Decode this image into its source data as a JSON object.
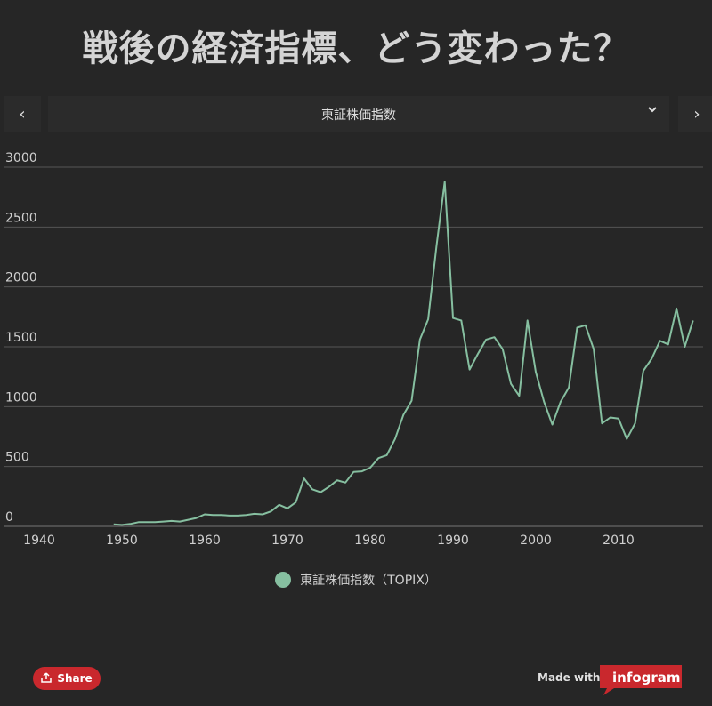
{
  "header": {
    "title": "戦後の経済指標、どう変わった？"
  },
  "nav": {
    "prev_icon": "‹",
    "next_icon": "›",
    "selected": "東証株価指数",
    "chevron": "⌄"
  },
  "chart_data": {
    "type": "line",
    "title": "",
    "xlabel": "",
    "ylabel": "",
    "xlim": [
      1940,
      2020
    ],
    "ylim": [
      0,
      3000
    ],
    "x_ticks": [
      "1940",
      "1950",
      "1960",
      "1970",
      "1980",
      "1990",
      "2000",
      "2010"
    ],
    "y_ticks": [
      "0",
      "500",
      "1000",
      "1500",
      "2000",
      "2500",
      "3000"
    ],
    "grid": true,
    "legend_position": "bottom",
    "series": [
      {
        "name": "東証株価指数（TOPIX）",
        "color": "#86bfa0",
        "x": [
          1949,
          1950,
          1951,
          1952,
          1953,
          1954,
          1955,
          1956,
          1957,
          1958,
          1959,
          1960,
          1961,
          1962,
          1963,
          1964,
          1965,
          1966,
          1967,
          1968,
          1969,
          1970,
          1971,
          1972,
          1973,
          1974,
          1975,
          1976,
          1977,
          1978,
          1979,
          1980,
          1981,
          1982,
          1983,
          1984,
          1985,
          1986,
          1987,
          1988,
          1989,
          1990,
          1991,
          1992,
          1993,
          1994,
          1995,
          1996,
          1997,
          1998,
          1999,
          2000,
          2001,
          2002,
          2003,
          2004,
          2005,
          2006,
          2007,
          2008,
          2009,
          2010,
          2011,
          2012,
          2013,
          2014,
          2015,
          2016,
          2017,
          2018,
          2019
        ],
        "y": [
          17,
          12,
          20,
          35,
          35,
          35,
          40,
          45,
          40,
          55,
          70,
          100,
          95,
          95,
          90,
          90,
          95,
          105,
          100,
          125,
          180,
          150,
          200,
          400,
          310,
          285,
          330,
          385,
          365,
          455,
          460,
          490,
          570,
          595,
          730,
          930,
          1050,
          1560,
          1730,
          2340,
          2880,
          1740,
          1720,
          1310,
          1440,
          1560,
          1580,
          1480,
          1190,
          1090,
          1720,
          1290,
          1040,
          850,
          1040,
          1160,
          1660,
          1680,
          1480,
          860,
          910,
          900,
          730,
          860,
          1300,
          1400,
          1550,
          1520,
          1820,
          1500,
          1720
        ]
      }
    ]
  },
  "legend": {
    "label": "東証株価指数（TOPIX）"
  },
  "footer": {
    "share_label": "Share",
    "made_with": "Made with",
    "brand": "infogram",
    "share_icon": "share-icon"
  }
}
